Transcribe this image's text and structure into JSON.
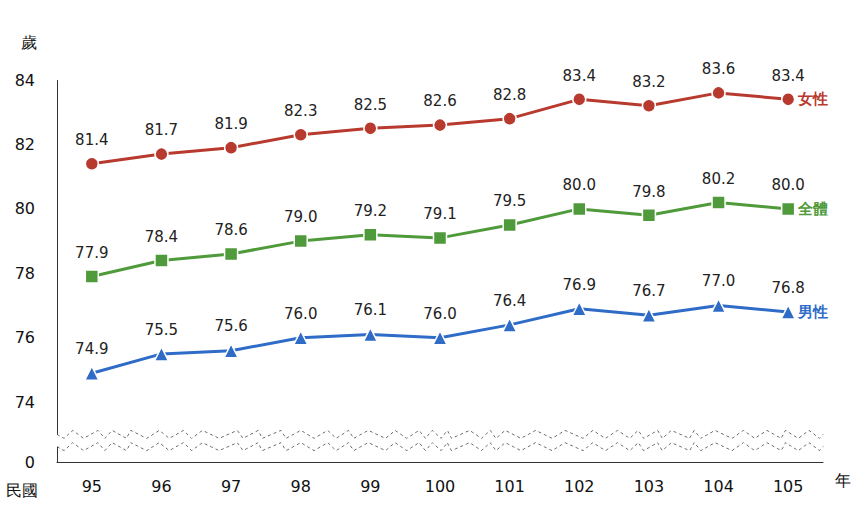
{
  "chart_data": {
    "type": "line",
    "xlabel": "年",
    "ylabel": "歲",
    "annotations": [
      {
        "text": "民國"
      }
    ],
    "categories": [
      "95",
      "96",
      "97",
      "98",
      "99",
      "100",
      "101",
      "102",
      "103",
      "104",
      "105"
    ],
    "series": [
      {
        "name": "女性",
        "color": "#b83a2e",
        "marker": "circle",
        "values": [
          81.4,
          81.7,
          81.9,
          82.3,
          82.5,
          82.6,
          82.8,
          83.4,
          83.2,
          83.6,
          83.4
        ],
        "value_labels": [
          "81.4",
          "81.7",
          "81.9",
          "82.3",
          "82.5",
          "82.6",
          "82.8",
          "83.4",
          "83.2",
          "83.6",
          "83.4"
        ]
      },
      {
        "name": "全體",
        "color": "#4f9a3a",
        "marker": "square",
        "values": [
          77.9,
          78.4,
          78.6,
          79.0,
          79.2,
          79.1,
          79.5,
          80.0,
          79.8,
          80.2,
          80.0
        ],
        "value_labels": [
          "77.9",
          "78.4",
          "78.6",
          "79.0",
          "79.2",
          "79.1",
          "79.5",
          "80.0",
          "79.8",
          "80.2",
          "80.0"
        ]
      },
      {
        "name": "男性",
        "color": "#2f6cc8",
        "marker": "triangle",
        "values": [
          74.9,
          75.5,
          75.6,
          76.0,
          76.1,
          76.0,
          76.4,
          76.9,
          76.7,
          77.0,
          76.8
        ],
        "value_labels": [
          "74.9",
          "75.5",
          "75.6",
          "76.0",
          "76.1",
          "76.0",
          "76.4",
          "76.9",
          "76.7",
          "77.0",
          "76.8"
        ]
      }
    ],
    "ylim": [
      0,
      84
    ],
    "yticks": [
      0,
      74,
      76,
      78,
      80,
      82,
      84
    ],
    "grid": false,
    "data_labels": true,
    "legend": "right"
  }
}
